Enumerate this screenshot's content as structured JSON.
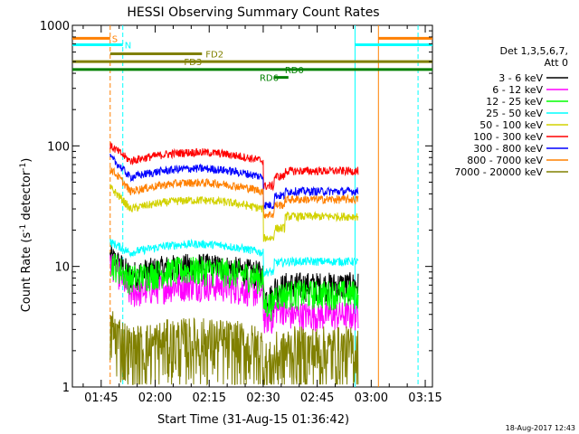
{
  "chart_data": {
    "type": "line",
    "title": "HESSI Observing Summary Count Rates",
    "xlabel": "Start Time (31-Aug-15 01:36:42)",
    "ylabel_main": "Count Rate (s",
    "ylabel_sup1": "-1",
    "ylabel_mid": " detector",
    "ylabel_sup2": "-1",
    "ylabel_end": ")",
    "y_scale": "log",
    "ylim": [
      1,
      1000
    ],
    "xlim_minutes": [
      97,
      197
    ],
    "x_ticks": [
      {
        "label": "01:45",
        "minute": 105
      },
      {
        "label": "02:00",
        "minute": 120
      },
      {
        "label": "02:15",
        "minute": 135
      },
      {
        "label": "02:30",
        "minute": 150
      },
      {
        "label": "02:45",
        "minute": 165
      },
      {
        "label": "03:00",
        "minute": 180
      },
      {
        "label": "03:15",
        "minute": 195
      }
    ],
    "y_ticks": [
      {
        "label": "1",
        "value": 1
      },
      {
        "label": "10",
        "value": 10
      },
      {
        "label": "100",
        "value": 100
      },
      {
        "label": "1000",
        "value": 1000
      }
    ],
    "legend_header": [
      "Det 1,3,5,6,7,",
      "Att 0"
    ],
    "legend_placement": "right",
    "series": [
      {
        "name": "3 - 6 keV",
        "color": "#000000",
        "levels": [
          12,
          8.5,
          7.5,
          7.0
        ]
      },
      {
        "name": "6 - 12 keV",
        "color": "#ff00ff",
        "levels": [
          11,
          6.0,
          5.0,
          4.0
        ]
      },
      {
        "name": "12 - 25 keV",
        "color": "#00ff00",
        "levels": [
          11,
          8.0,
          6.5,
          6.0
        ]
      },
      {
        "name": "25 - 50 keV",
        "color": "#00ffff",
        "levels": [
          16,
          13,
          12,
          11
        ]
      },
      {
        "name": "50 - 100 keV",
        "color": "#d2d200",
        "levels": [
          45,
          30,
          23,
          26
        ]
      },
      {
        "name": "100 - 300 keV",
        "color": "#ff0000",
        "levels": [
          100,
          75,
          62,
          62
        ]
      },
      {
        "name": "300 - 800 keV",
        "color": "#0000ff",
        "levels": [
          80,
          55,
          43,
          42
        ]
      },
      {
        "name": "800 - 7000 keV",
        "color": "#ff8000",
        "levels": [
          65,
          42,
          36,
          36
        ]
      },
      {
        "name": "7000 - 20000 keV",
        "color": "#808000",
        "levels": [
          3,
          2,
          2,
          2
        ]
      }
    ],
    "flags": [
      {
        "label": "S",
        "color": "#ff8000",
        "start": 97,
        "end": 107.5,
        "level": 780,
        "label_minute": 108
      },
      {
        "label": "S",
        "color": "#ff8000",
        "start": 182,
        "end": 197,
        "level": 780,
        "label_minute": null
      },
      {
        "label": "N",
        "color": "#00ffff",
        "start": 97,
        "end": 111,
        "level": 690,
        "label_minute": 111.5
      },
      {
        "label": "N",
        "color": "#00ffff",
        "start": 175.5,
        "end": 197,
        "level": 690,
        "label_minute": null
      },
      {
        "label": "FD2",
        "color": "#808000",
        "start": 107.5,
        "end": 133,
        "level": 580,
        "label_minute": 134
      },
      {
        "label": "FD3",
        "color": "#808000",
        "start": 97,
        "end": 197,
        "level": 500,
        "label_minute": 128
      },
      {
        "label": "RD0",
        "color": "#008000",
        "start": 97,
        "end": 197,
        "level": 430,
        "label_minute": 156
      },
      {
        "label": "RD6",
        "color": "#008000",
        "start": 153,
        "end": 157,
        "level": 370,
        "label_minute": 149
      }
    ],
    "vlines": [
      {
        "minute": 107.5,
        "color": "#ff8000",
        "style": "dashed"
      },
      {
        "minute": 111,
        "color": "#00ffff",
        "style": "dashed"
      },
      {
        "minute": 175.5,
        "color": "#00ffff",
        "style": "solid"
      },
      {
        "minute": 182,
        "color": "#ff8000",
        "style": "solid"
      },
      {
        "minute": 193,
        "color": "#00ffff",
        "style": "dashed"
      }
    ],
    "data_window_minutes": [
      107.5,
      176.5
    ],
    "timestamp": "18-Aug-2017 12:43"
  }
}
